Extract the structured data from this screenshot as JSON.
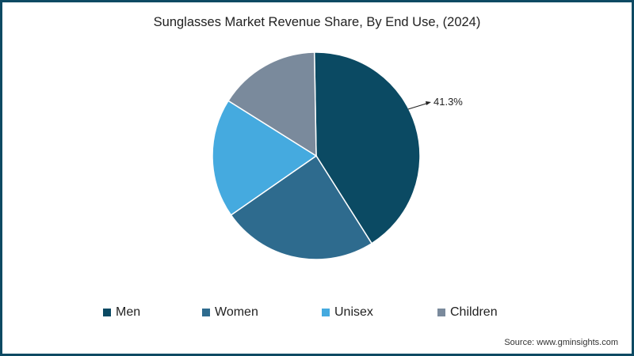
{
  "chart_data": {
    "type": "pie",
    "title": "Sunglasses Market Revenue Share, By End Use, (2024)",
    "categories": [
      "Men",
      "Women",
      "Unisex",
      "Children"
    ],
    "values": [
      41.3,
      24.3,
      18.6,
      15.8
    ],
    "colors": [
      "#0b4a63",
      "#2e6b8e",
      "#45aadf",
      "#7a8a9c"
    ],
    "labeled_values": [
      {
        "category": "Men",
        "label": "41.3%"
      }
    ],
    "start_angle_deg": 0,
    "direction": "clockwise",
    "legend_position": "bottom",
    "source": "Source: www.gminsights.com"
  },
  "header": {
    "title": "Sunglasses Market Revenue Share, By End Use, (2024)"
  },
  "callout": {
    "label": "41.3%"
  },
  "legend": {
    "items": [
      {
        "label": "Men",
        "color": "#0b4a63"
      },
      {
        "label": "Women",
        "color": "#2e6b8e"
      },
      {
        "label": "Unisex",
        "color": "#45aadf"
      },
      {
        "label": "Children",
        "color": "#7a8a9c"
      }
    ]
  },
  "footer": {
    "source": "Source: www.gminsights.com"
  },
  "theme": {
    "border": "#0d4a63"
  }
}
